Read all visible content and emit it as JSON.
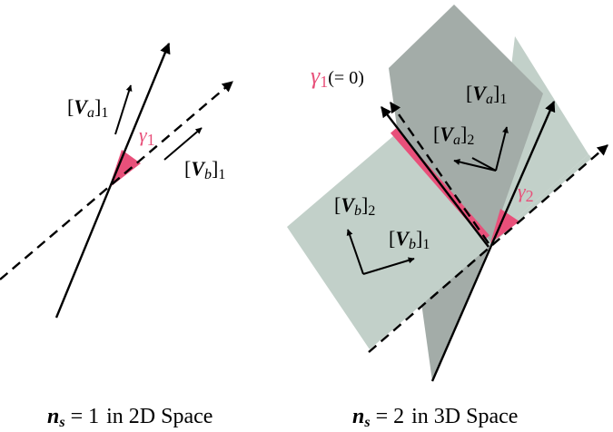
{
  "colors": {
    "angle": "#e8507a",
    "plane_light": "#c2d0c9",
    "plane_dark": "#a3aca8",
    "line": "#000000"
  },
  "left_panel": {
    "va_label": {
      "open": "[",
      "letter": "V",
      "sub": "a",
      "close": "]",
      "index": "1"
    },
    "vb_label": {
      "open": "[",
      "letter": "V",
      "sub": "b",
      "close": "]",
      "index": "1"
    },
    "gamma_label": {
      "symbol": "γ",
      "index": "1"
    },
    "caption": {
      "var": "n",
      "sub": "s",
      "eq": " = 1",
      "text": "in 2D Space"
    }
  },
  "right_panel": {
    "gamma1_label": {
      "symbol": "γ",
      "index": "1",
      "note": "(= 0)"
    },
    "va1_label": {
      "open": "[",
      "letter": "V",
      "sub": "a",
      "close": "]",
      "index": "1"
    },
    "va2_label": {
      "open": "[",
      "letter": "V",
      "sub": "a",
      "close": "]",
      "index": "2"
    },
    "vb1_label": {
      "open": "[",
      "letter": "V",
      "sub": "b",
      "close": "]",
      "index": "1"
    },
    "vb2_label": {
      "open": "[",
      "letter": "V",
      "sub": "b",
      "close": "]",
      "index": "2"
    },
    "gamma2_label": {
      "symbol": "γ",
      "index": "2"
    },
    "caption": {
      "var": "n",
      "sub": "s",
      "eq": " = 2",
      "text": "in 3D Space"
    }
  }
}
